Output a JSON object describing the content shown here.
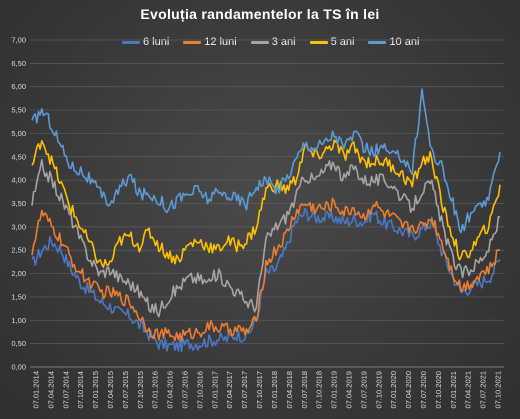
{
  "chart_data": {
    "type": "line",
    "title": "Evoluția  randamentelor  la TS în lei",
    "legend_position": "top",
    "grid": true,
    "ylim": [
      0,
      7
    ],
    "y_ticks": [
      "0,00",
      "0,50",
      "1,00",
      "1,50",
      "2,00",
      "2,50",
      "3,00",
      "3,50",
      "4,00",
      "4,50",
      "5,00",
      "5,50",
      "6,00",
      "6,50",
      "7,00"
    ],
    "x_ticks": [
      "07.01.2014",
      "07.04.2014",
      "07.07.2014",
      "07.10.2014",
      "07.01.2015",
      "07.04.2015",
      "07.07.2015",
      "07.10.2015",
      "07.01.2016",
      "07.04.2016",
      "07.07.2016",
      "07.10.2016",
      "07.01.2017",
      "07.04.2017",
      "07.07.2017",
      "07.10.2017",
      "07.01.2018",
      "07.04.2018",
      "07.07.2018",
      "07.10.2018",
      "07.01.2019",
      "07.04.2019",
      "07.07.2019",
      "07.10.2019",
      "07.01.2020",
      "07.04.2020",
      "07.07.2020",
      "07.10.2020",
      "07.01.2021",
      "07.04.2021",
      "07.07.2021",
      "07.10.2021"
    ],
    "series": [
      {
        "name": "6 luni",
        "color": "#4a78c2",
        "values": [
          2.2,
          2.5,
          2.7,
          2.5,
          2.1,
          1.8,
          1.6,
          1.4,
          1.3,
          1.15,
          1.1,
          0.9,
          0.7,
          0.5,
          0.45,
          0.45,
          0.5,
          0.5,
          0.55,
          0.6,
          0.6,
          0.7,
          0.65,
          1.0,
          2.0,
          2.1,
          2.5,
          3.1,
          3.3,
          3.2,
          3.2,
          3.2,
          3.1,
          3.15,
          3.1,
          3.3,
          3.1,
          3.0,
          2.9,
          2.8,
          2.95,
          3.1,
          2.5,
          2.0,
          1.6,
          1.7,
          1.8,
          1.95,
          2.3
        ]
      },
      {
        "name": "12 luni",
        "color": "#ed7d31",
        "values": [
          2.5,
          3.3,
          3.0,
          2.7,
          2.3,
          2.0,
          1.8,
          1.6,
          1.6,
          1.5,
          1.4,
          1.1,
          0.8,
          0.7,
          0.7,
          0.65,
          0.7,
          0.75,
          0.85,
          0.85,
          0.8,
          0.8,
          0.75,
          1.0,
          2.2,
          2.5,
          2.8,
          3.3,
          3.5,
          3.4,
          3.4,
          3.5,
          3.3,
          3.4,
          3.2,
          3.5,
          3.3,
          3.2,
          3.0,
          3.0,
          3.0,
          3.2,
          2.7,
          2.1,
          1.7,
          1.8,
          2.0,
          2.1,
          2.5
        ]
      },
      {
        "name": "3 ani",
        "color": "#a5a5a5",
        "values": [
          3.5,
          4.3,
          4.0,
          3.6,
          3.2,
          2.7,
          2.3,
          2.0,
          2.1,
          1.9,
          1.8,
          1.6,
          1.3,
          1.2,
          1.5,
          1.7,
          1.9,
          1.9,
          1.8,
          2.0,
          1.8,
          1.6,
          1.4,
          1.3,
          2.7,
          3.0,
          3.2,
          3.6,
          4.1,
          4.0,
          4.2,
          4.4,
          4.0,
          4.3,
          4.0,
          4.0,
          4.0,
          3.9,
          3.6,
          3.4,
          3.8,
          3.9,
          3.1,
          2.4,
          2.0,
          2.1,
          2.3,
          2.6,
          3.2
        ]
      },
      {
        "name": "5 ani",
        "color": "#ffc000",
        "values": [
          4.3,
          4.9,
          4.4,
          3.9,
          3.4,
          3.0,
          2.6,
          2.2,
          2.2,
          2.7,
          2.8,
          2.6,
          2.9,
          2.6,
          2.4,
          2.3,
          2.6,
          2.7,
          2.6,
          2.5,
          2.7,
          2.6,
          2.7,
          3.0,
          3.8,
          3.9,
          3.8,
          4.0,
          4.7,
          4.5,
          4.6,
          4.8,
          4.5,
          4.7,
          4.4,
          4.4,
          4.4,
          4.3,
          4.1,
          3.9,
          4.4,
          4.5,
          3.5,
          2.9,
          2.3,
          2.5,
          2.8,
          3.1,
          3.9
        ]
      },
      {
        "name": "10 ani",
        "color": "#5b9bd5",
        "values": [
          5.2,
          5.5,
          5.2,
          4.7,
          4.3,
          4.2,
          4.0,
          3.7,
          3.5,
          3.8,
          4.1,
          3.7,
          3.7,
          3.6,
          3.4,
          3.6,
          3.7,
          3.8,
          3.6,
          3.7,
          3.7,
          3.6,
          3.5,
          3.9,
          4.0,
          3.8,
          4.0,
          4.4,
          4.8,
          4.7,
          4.8,
          5.0,
          4.7,
          5.0,
          4.7,
          4.6,
          4.7,
          4.5,
          4.5,
          4.2,
          5.9,
          4.6,
          4.3,
          3.6,
          2.9,
          3.3,
          3.4,
          3.7,
          4.6
        ]
      }
    ]
  }
}
